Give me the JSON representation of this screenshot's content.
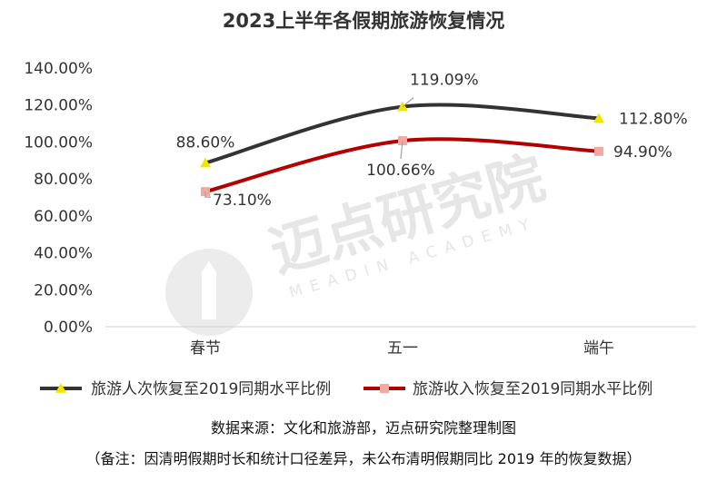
{
  "chart_data": {
    "type": "line",
    "title": "2023上半年各假期旅游恢复情况",
    "categories": [
      "春节",
      "五一",
      "端午"
    ],
    "series": [
      {
        "name": "旅游人次恢复至2019同期水平比例",
        "values": [
          88.6,
          119.09,
          112.8
        ],
        "labels": [
          "88.60%",
          "119.09%",
          "112.80%"
        ],
        "color": "#333333",
        "marker": "triangle",
        "marker_color": "#f2e600"
      },
      {
        "name": "旅游收入恢复至2019同期水平比例",
        "values": [
          73.1,
          100.66,
          94.9
        ],
        "labels": [
          "73.10%",
          "100.66%",
          "94.90%"
        ],
        "color": "#b30000",
        "marker": "square",
        "marker_color": "#f4a9a0"
      }
    ],
    "y_ticks": [
      "0.00%",
      "20.00%",
      "40.00%",
      "60.00%",
      "80.00%",
      "100.00%",
      "120.00%",
      "140.00%"
    ],
    "ylim": [
      0,
      140
    ],
    "grid": false,
    "legend_position": "bottom",
    "xlabel": "",
    "ylabel": ""
  },
  "watermark": {
    "brand": "迈点研究院",
    "sub": "MEADIN ACADEMY"
  },
  "footer": {
    "source": "数据来源：文化和旅游部，迈点研究院整理制图",
    "note": "（备注：因清明假期时长和统计口径差异，未公布清明假期同比 2019 年的恢复数据）"
  }
}
